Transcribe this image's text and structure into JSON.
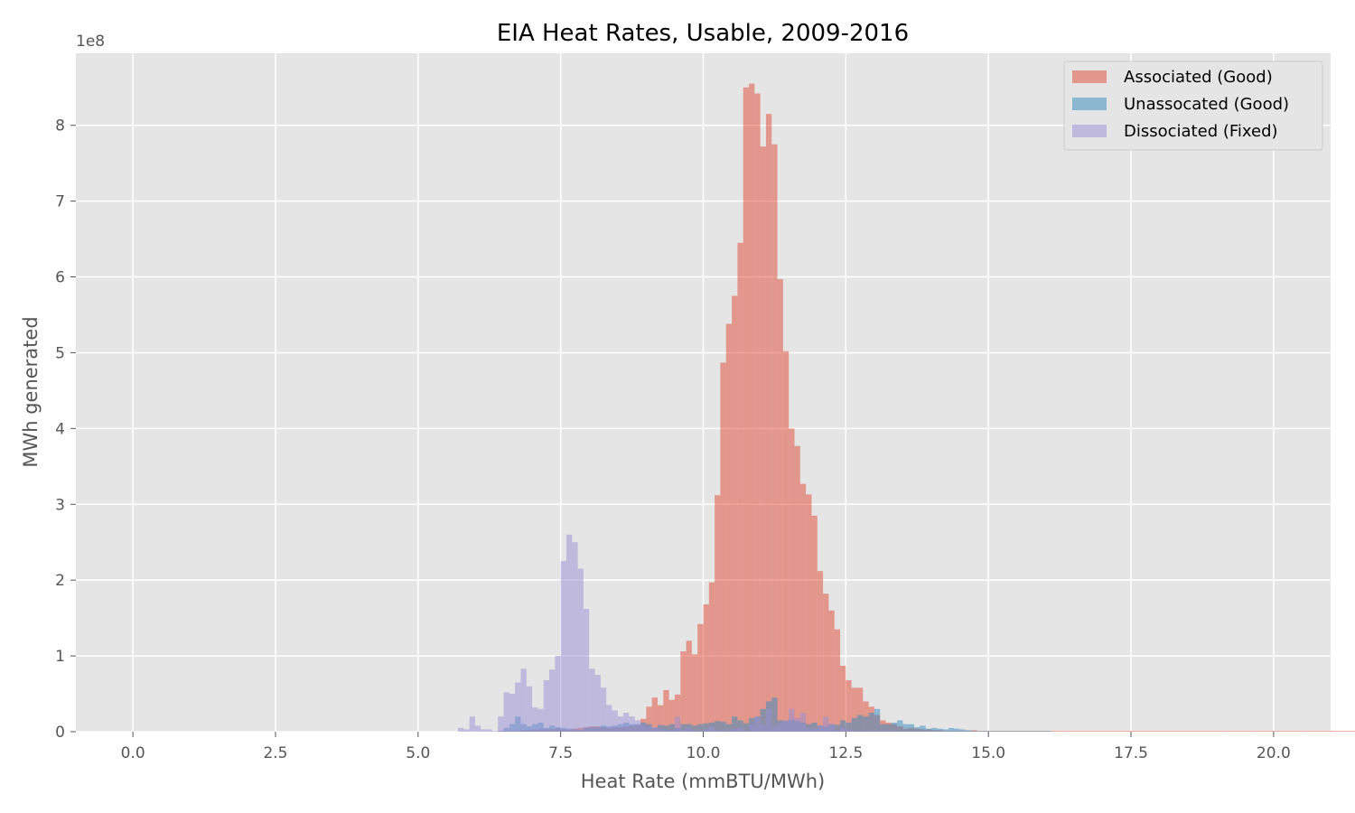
{
  "chart_data": {
    "type": "bar",
    "title": "EIA Heat Rates, Usable, 2009-2016",
    "xlabel": "Heat Rate (mmBTU/MWh)",
    "ylabel": "MWh generated",
    "y_offset_label": "1e8",
    "xlim": [
      -1.0,
      21.0
    ],
    "ylim": [
      0,
      8.95
    ],
    "x_ticks": [
      0.0,
      2.5,
      5.0,
      7.5,
      10.0,
      12.5,
      15.0,
      17.5,
      20.0
    ],
    "x_tick_labels": [
      "0.0",
      "2.5",
      "5.0",
      "7.5",
      "10.0",
      "12.5",
      "15.0",
      "17.5",
      "20.0"
    ],
    "y_ticks": [
      0,
      1,
      2,
      3,
      4,
      5,
      6,
      7,
      8
    ],
    "y_tick_labels": [
      "0",
      "1",
      "2",
      "3",
      "4",
      "5",
      "6",
      "7",
      "8"
    ],
    "grid": true,
    "legend_position": "top-right",
    "bin_start": 0.0,
    "bin_width": 0.1,
    "series": [
      {
        "name": "Associated (Good)",
        "color": "#e24a33",
        "values": [
          0,
          0,
          0,
          0,
          0,
          0,
          0,
          0,
          0,
          0,
          0,
          0,
          0,
          0,
          0,
          0,
          0,
          0,
          0,
          0,
          0,
          0,
          0,
          0,
          0,
          0,
          0,
          0,
          0,
          0,
          0,
          0,
          0,
          0,
          0,
          0,
          0,
          0,
          0,
          0,
          0,
          0,
          0,
          0,
          0,
          0,
          0,
          0,
          0,
          0,
          0,
          0,
          0,
          0,
          0,
          0,
          0,
          0,
          0,
          0,
          0,
          0,
          0,
          0,
          0.01,
          0.01,
          0.01,
          0.01,
          0.02,
          0.02,
          0.02,
          0.03,
          0.03,
          0.03,
          0.04,
          0.03,
          0.03,
          0.04,
          0.05,
          0.06,
          0.07,
          0.07,
          0.06,
          0.05,
          0.06,
          0.06,
          0.07,
          0.08,
          0.09,
          0.17,
          0.33,
          0.45,
          0.35,
          0.55,
          0.42,
          0.49,
          1.06,
          1.2,
          1.02,
          1.42,
          1.68,
          1.97,
          3.12,
          4.87,
          5.38,
          5.75,
          6.45,
          8.5,
          8.55,
          8.42,
          7.72,
          8.15,
          7.75,
          5.97,
          5.02,
          4.0,
          3.77,
          3.27,
          3.13,
          2.85,
          2.12,
          1.82,
          1.6,
          1.35,
          0.87,
          0.68,
          0.58,
          0.58,
          0.4,
          0.33,
          0.22,
          0.15,
          0.12,
          0.1,
          0.07,
          0.04,
          0.05,
          0.04,
          0.03,
          0.03,
          0.02,
          0.02,
          0.01,
          0.01,
          0.01,
          0.01,
          0.01,
          0.02,
          0.01,
          0.01,
          0.01,
          0.01,
          0.01,
          0.01,
          0.01,
          0.01,
          0.01,
          0.01,
          0.01,
          0.01,
          0.01,
          0.01,
          0.01,
          0.01,
          0.01,
          0.01,
          0.01,
          0.01,
          0.01,
          0.01,
          0.01,
          0.01,
          0.01,
          0.01,
          0.01,
          0.01,
          0.01,
          0.01,
          0.01,
          0.01,
          0.01,
          0.01,
          0.01,
          0.01,
          0.01,
          0.01,
          0.01,
          0.01,
          0.01,
          0.01,
          0.01,
          0.01,
          0.01,
          0.01,
          0.01,
          0.01,
          0.01,
          0.01,
          0.01,
          0.01,
          0.01,
          0.01,
          0.01,
          0.01,
          0.01,
          0.01,
          0.01,
          0.01,
          0.01,
          0.01,
          0.01,
          0.01,
          0.01,
          0.01,
          0.01,
          0.01,
          0.01,
          0.01,
          0.01,
          0.01,
          0.01,
          0.01,
          0.01,
          0.01,
          0.01,
          0.01,
          0.01,
          0.01,
          0.01,
          0.01,
          0.01,
          0.01,
          0.01,
          0.01,
          0.01,
          0.01
        ]
      },
      {
        "name": "Unassocated (Good)",
        "color": "#348abd",
        "values": [
          0,
          0,
          0,
          0,
          0,
          0,
          0,
          0,
          0,
          0,
          0,
          0,
          0,
          0,
          0,
          0,
          0,
          0,
          0,
          0,
          0,
          0,
          0,
          0,
          0,
          0,
          0,
          0,
          0,
          0,
          0,
          0,
          0,
          0,
          0,
          0,
          0,
          0,
          0,
          0,
          0,
          0,
          0,
          0,
          0,
          0,
          0,
          0,
          0,
          0,
          0,
          0,
          0,
          0,
          0,
          0,
          0,
          0,
          0,
          0,
          0,
          0,
          0,
          0,
          0.01,
          0.05,
          0.1,
          0.2,
          0.1,
          0.07,
          0.1,
          0.12,
          0.05,
          0.08,
          0.06,
          0.05,
          0.04,
          0.03,
          0.02,
          0.05,
          0.06,
          0.06,
          0.08,
          0.07,
          0.08,
          0.1,
          0.12,
          0.1,
          0.1,
          0.12,
          0.1,
          0.05,
          0.09,
          0.08,
          0.1,
          0.05,
          0.1,
          0.1,
          0.08,
          0.1,
          0.11,
          0.12,
          0.14,
          0.13,
          0.1,
          0.2,
          0.15,
          0.11,
          0.18,
          0.2,
          0.3,
          0.4,
          0.45,
          0.15,
          0.14,
          0.16,
          0.14,
          0.12,
          0.1,
          0.12,
          0.08,
          0.07,
          0.1,
          0.09,
          0.15,
          0.12,
          0.18,
          0.22,
          0.2,
          0.25,
          0.3,
          0.1,
          0.1,
          0.12,
          0.15,
          0.1,
          0.1,
          0.06,
          0.08,
          0.04,
          0.05,
          0.04,
          0.03,
          0.05,
          0.04,
          0.03,
          0.02,
          0.01,
          0.01,
          0.01,
          0.01,
          0.01,
          0.01,
          0.01,
          0.01,
          0.01,
          0.01,
          0.01,
          0.01,
          0.01,
          0.01,
          0,
          0,
          0,
          0,
          0,
          0,
          0,
          0,
          0,
          0,
          0,
          0,
          0,
          0,
          0,
          0,
          0,
          0,
          0,
          0,
          0,
          0,
          0,
          0,
          0,
          0,
          0,
          0,
          0,
          0,
          0,
          0,
          0,
          0,
          0,
          0,
          0,
          0,
          0,
          0,
          0,
          0,
          0,
          0,
          0,
          0,
          0,
          0,
          0,
          0,
          0,
          0,
          0,
          0,
          0,
          0,
          0,
          0,
          0,
          0,
          0,
          0,
          0,
          0,
          0,
          0,
          0,
          0,
          0,
          0,
          0,
          0,
          0,
          0,
          0,
          0,
          0
        ]
      },
      {
        "name": "Dissociated (Fixed)",
        "color": "#988ed5",
        "values": [
          0,
          0,
          0,
          0,
          0,
          0,
          0,
          0,
          0,
          0,
          0,
          0,
          0,
          0,
          0,
          0,
          0,
          0,
          0,
          0,
          0,
          0,
          0,
          0,
          0,
          0,
          0,
          0,
          0,
          0,
          0,
          0,
          0,
          0,
          0,
          0,
          0,
          0,
          0,
          0,
          0,
          0,
          0,
          0,
          0,
          0,
          0,
          0,
          0,
          0,
          0,
          0,
          0,
          0,
          0,
          0,
          0,
          0.05,
          0.03,
          0.2,
          0.08,
          0.03,
          0.03,
          0.01,
          0.2,
          0.52,
          0.5,
          0.65,
          0.83,
          0.6,
          0.32,
          0.3,
          0.68,
          0.82,
          1.0,
          2.25,
          2.6,
          2.5,
          2.15,
          1.62,
          0.83,
          0.75,
          0.58,
          0.35,
          0.28,
          0.2,
          0.25,
          0.2,
          0.15,
          0.1,
          0.08,
          0.06,
          0.04,
          0.02,
          0.02,
          0.2,
          0.03,
          0.05,
          0.01,
          0.01,
          0.03,
          0.07,
          0.02,
          0.01,
          0.01,
          0.04,
          0.05,
          0.01,
          0.1,
          0.2,
          0.1,
          0.3,
          0.08,
          0.12,
          0.15,
          0.3,
          0.18,
          0.25,
          0.05,
          0.04,
          0.08,
          0.2,
          0.1,
          0.02,
          0.05,
          0.03,
          0.01,
          0.02,
          0.01,
          0.01,
          0.01,
          0.01,
          0.01,
          0.01,
          0,
          0,
          0,
          0,
          0,
          0,
          0,
          0,
          0,
          0,
          0,
          0,
          0,
          0,
          0,
          0,
          0,
          0,
          0,
          0,
          0,
          0,
          0,
          0,
          0,
          0,
          0,
          0,
          0,
          0,
          0,
          0,
          0,
          0,
          0,
          0,
          0,
          0,
          0,
          0,
          0,
          0,
          0,
          0,
          0,
          0,
          0,
          0,
          0,
          0,
          0,
          0,
          0,
          0,
          0,
          0,
          0,
          0,
          0,
          0,
          0,
          0,
          0,
          0,
          0,
          0,
          0,
          0,
          0,
          0,
          0,
          0,
          0,
          0,
          0,
          0,
          0,
          0,
          0,
          0,
          0,
          0,
          0,
          0,
          0,
          0,
          0,
          0,
          0,
          0,
          0,
          0,
          0,
          0,
          0,
          0,
          0,
          0,
          0,
          0,
          0,
          0,
          0,
          0,
          0,
          0,
          0,
          0,
          0,
          0,
          0,
          0,
          0,
          0,
          0,
          0,
          0,
          0,
          0,
          0
        ]
      }
    ]
  }
}
